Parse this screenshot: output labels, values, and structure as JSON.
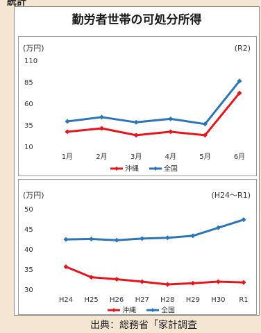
{
  "page": {
    "top_stub": "統計",
    "title": "勤労者世帯の可処分所得",
    "source": "出典：総務省「家計調査"
  },
  "chart_data": [
    {
      "type": "line",
      "unit_label": "(万円)",
      "period_label": "(R2)",
      "categories": [
        "1月",
        "2月",
        "3月",
        "4月",
        "5月",
        "6月"
      ],
      "yticks": [
        110,
        85,
        60,
        35,
        10
      ],
      "ylim": [
        10,
        110
      ],
      "grid": false,
      "legend_position": "bottom",
      "series": [
        {
          "name": "沖縄",
          "color": "#e8141c",
          "values": [
            27,
            31,
            23,
            27,
            23,
            72
          ]
        },
        {
          "name": "全国",
          "color": "#2a74b8",
          "values": [
            39,
            44,
            38,
            42,
            36,
            86
          ]
        }
      ]
    },
    {
      "type": "line",
      "unit_label": "(万円)",
      "period_label": "(H24～R1)",
      "categories": [
        "H24",
        "H25",
        "H26",
        "H27",
        "H28",
        "H29",
        "H30",
        "R1"
      ],
      "yticks": [
        50,
        45,
        40,
        35,
        30
      ],
      "ylim": [
        30,
        50
      ],
      "grid": false,
      "legend_position": "bottom",
      "series": [
        {
          "name": "沖縄",
          "color": "#e8141c",
          "values": [
            35.6,
            33.0,
            32.5,
            31.9,
            31.2,
            31.5,
            31.9,
            31.7
          ]
        },
        {
          "name": "全国",
          "color": "#2a74b8",
          "values": [
            42.4,
            42.5,
            42.2,
            42.6,
            42.8,
            43.3,
            45.3,
            47.3
          ]
        }
      ]
    }
  ]
}
